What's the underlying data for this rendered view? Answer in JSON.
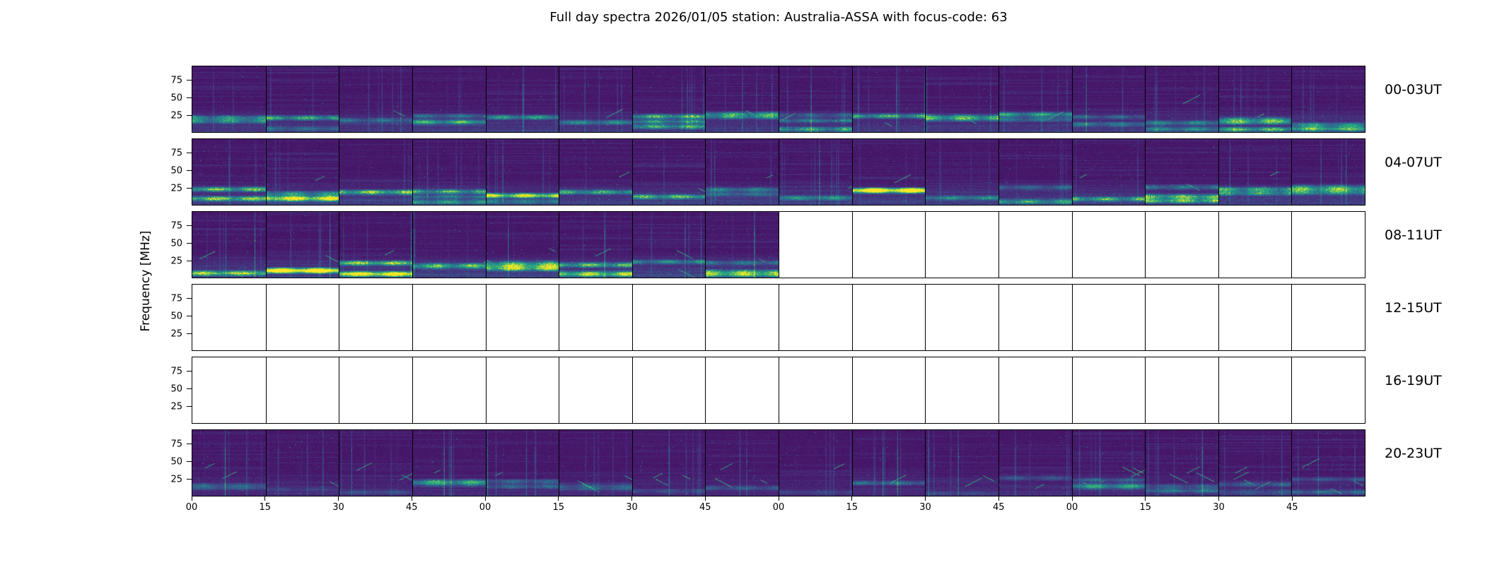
{
  "chart_data": {
    "type": "heatmap",
    "title": "Full day spectra 2026/01/05 station: Australia-ASSA with focus-code: 63",
    "date": "2026/01/05",
    "station": "Australia-ASSA",
    "focus_code": "63",
    "ylabel": "Frequency [MHz]",
    "colormap": "viridis",
    "y_ticks": [
      "75",
      "50",
      "25"
    ],
    "y_tick_positions": [
      0.21,
      0.48,
      0.75
    ],
    "x_tick_labels": [
      "00",
      "15",
      "30",
      "45",
      "00",
      "15",
      "30",
      "45",
      "00",
      "15",
      "30",
      "45",
      "00",
      "15",
      "30",
      "45"
    ],
    "segments_per_row": 16,
    "minutes_per_segment": 15,
    "rows": [
      {
        "label": "00-03UT",
        "filled_segments": 16,
        "band_intensity": 0.6,
        "diagonal_streaks": 1
      },
      {
        "label": "04-07UT",
        "filled_segments": 16,
        "band_intensity": 0.75,
        "diagonal_streaks": 1
      },
      {
        "label": "08-11UT",
        "filled_segments": 8,
        "band_intensity": 0.8,
        "diagonal_streaks": 2
      },
      {
        "label": "12-15UT",
        "filled_segments": 0,
        "band_intensity": 0,
        "diagonal_streaks": 0
      },
      {
        "label": "16-19UT",
        "filled_segments": 0,
        "band_intensity": 0,
        "diagonal_streaks": 0
      },
      {
        "label": "20-23UT",
        "filled_segments": 16,
        "band_intensity": 0.32,
        "diagonal_streaks": 4
      }
    ]
  }
}
